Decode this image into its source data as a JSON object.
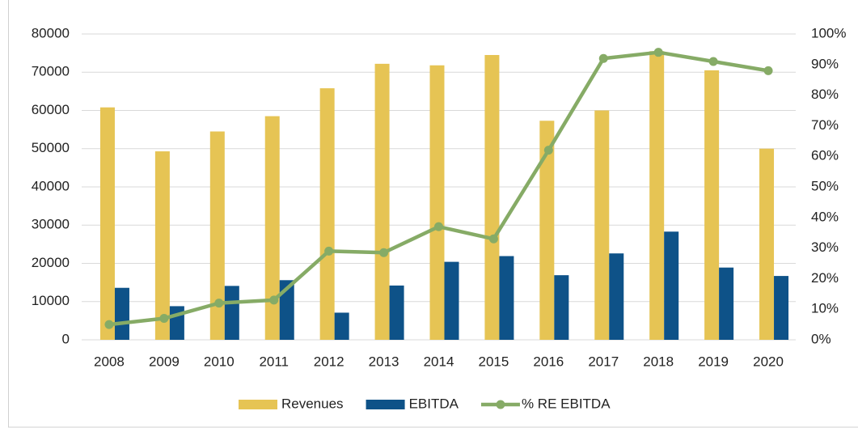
{
  "chart_data": {
    "type": "bar",
    "categories": [
      "2008",
      "2009",
      "2010",
      "2011",
      "2012",
      "2013",
      "2014",
      "2015",
      "2016",
      "2017",
      "2018",
      "2019",
      "2020"
    ],
    "series": [
      {
        "name": "Revenues",
        "color": "#e6c454",
        "values": [
          60800,
          49300,
          54500,
          58500,
          65800,
          72200,
          71800,
          74500,
          57300,
          60000,
          75500,
          70500,
          50000
        ]
      },
      {
        "name": "EBITDA",
        "color": "#0e5288",
        "values": [
          13600,
          8800,
          14100,
          15600,
          7100,
          14200,
          20400,
          21900,
          16900,
          22600,
          28300,
          18900,
          16700
        ]
      },
      {
        "name": "% RE EBITDA",
        "color": "#86ab66",
        "axis": "y2",
        "type": "line",
        "values": [
          5,
          7,
          12,
          13,
          29,
          28.5,
          37,
          33,
          62,
          92,
          94,
          91,
          88
        ]
      }
    ],
    "ylim": [
      0,
      80000
    ],
    "yticks": [
      0,
      10000,
      20000,
      30000,
      40000,
      50000,
      60000,
      70000,
      80000
    ],
    "y2lim": [
      0,
      100
    ],
    "y2ticks": [
      {
        "value": 0,
        "label": "0%"
      },
      {
        "value": 10,
        "label": "10%"
      },
      {
        "value": 20,
        "label": "20%"
      },
      {
        "value": 30,
        "label": "30%"
      },
      {
        "value": 40,
        "label": "40%"
      },
      {
        "value": 50,
        "label": "50%"
      },
      {
        "value": 60,
        "label": "60%"
      },
      {
        "value": 70,
        "label": "70%"
      },
      {
        "value": 80,
        "label": "80%"
      },
      {
        "value": 90,
        "label": "90%"
      },
      {
        "value": 100,
        "label": "100%"
      }
    ],
    "grid": true,
    "legend": "bottom"
  }
}
